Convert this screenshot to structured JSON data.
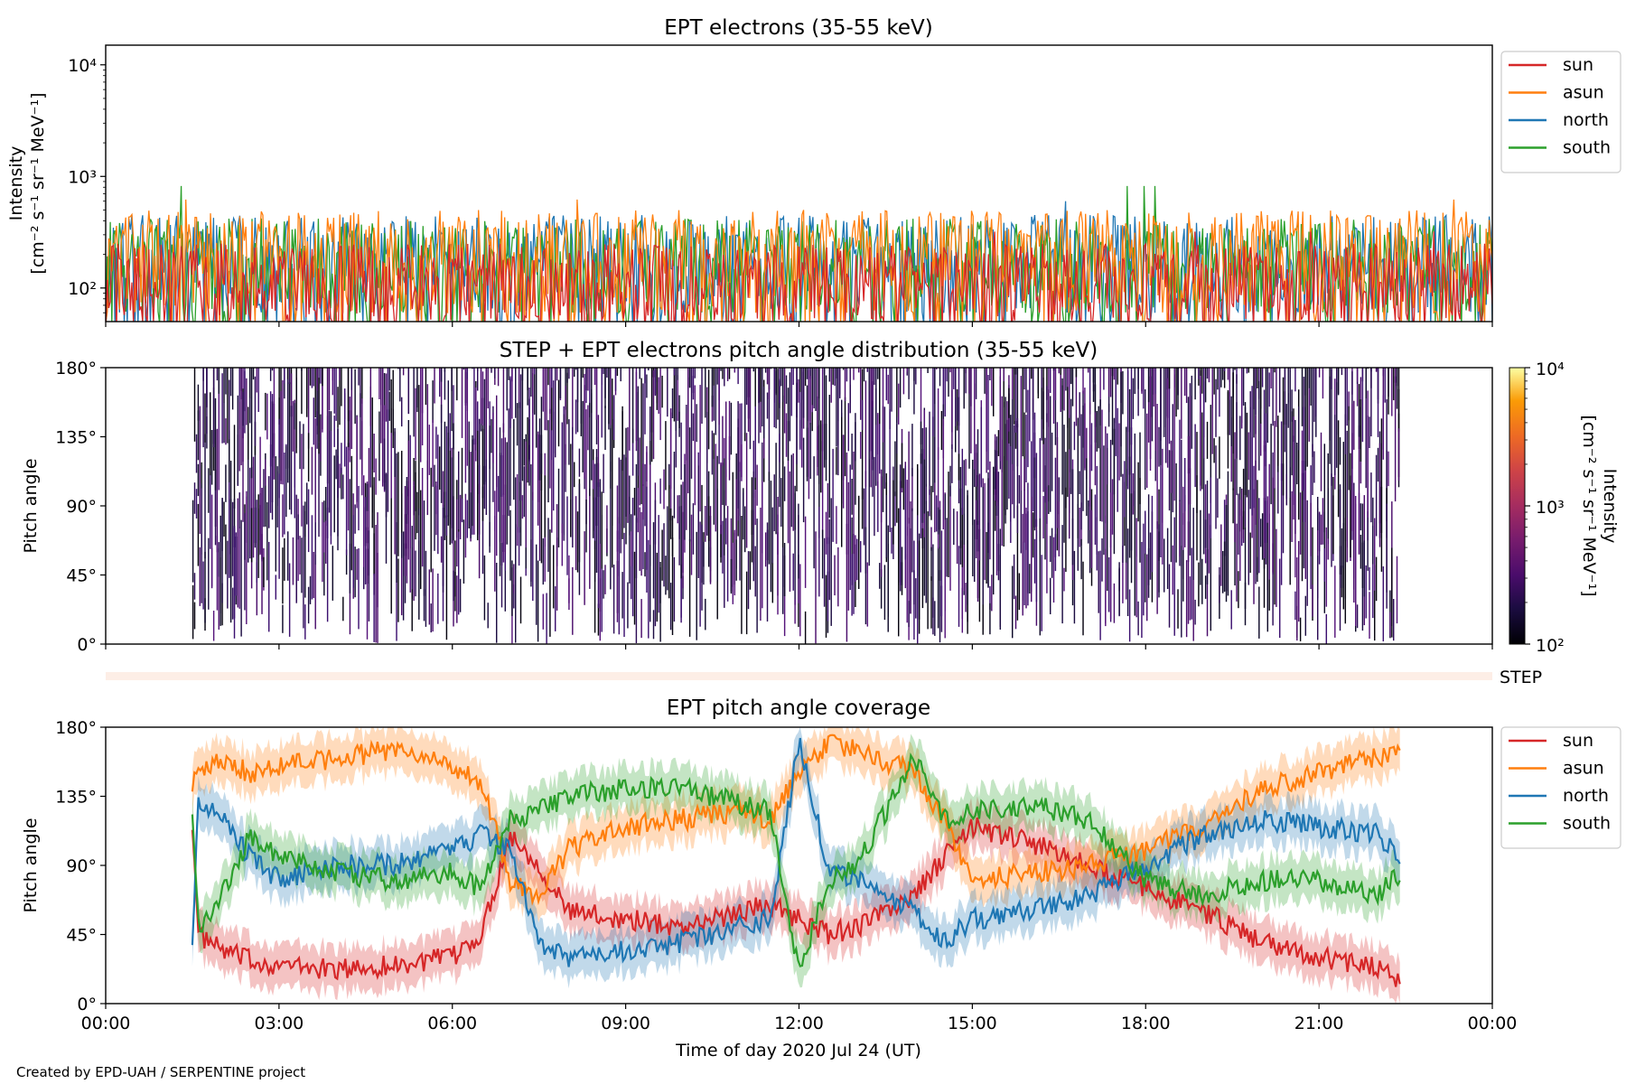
{
  "footer": "Created by EPD-UAH / SERPENTINE project",
  "xaxis": {
    "label": "Time of day 2020 Jul 24 (UT)",
    "ticks": [
      "00:00",
      "03:00",
      "06:00",
      "09:00",
      "12:00",
      "15:00",
      "18:00",
      "21:00",
      "00:00"
    ]
  },
  "colors": {
    "sun": "#d62728",
    "asun": "#ff7f0e",
    "north": "#1f77b4",
    "south": "#2ca02c"
  },
  "chart_data": [
    {
      "type": "line",
      "title": "EPT electrons (35-55 keV)",
      "ylabel_line1": "Intensity",
      "ylabel_line2": "[cm⁻² s⁻¹ sr⁻¹ MeV⁻¹]",
      "yscale": "log",
      "ylim": [
        50,
        15000
      ],
      "yticks": [
        100,
        1000,
        10000
      ],
      "ytick_labels": [
        "10²",
        "10³",
        "10⁴"
      ],
      "x_unit": "hours UT",
      "xlim": [
        0,
        24
      ],
      "legend_position": "outside-right-top",
      "series": [
        {
          "name": "north",
          "color": "#1f77b4",
          "typical_range": [
            60,
            450
          ],
          "peak": 600
        },
        {
          "name": "south",
          "color": "#2ca02c",
          "typical_range": [
            60,
            420
          ],
          "peak": 820
        },
        {
          "name": "asun",
          "color": "#ff7f0e",
          "typical_range": [
            60,
            500
          ],
          "peak": 620
        },
        {
          "name": "sun",
          "color": "#d62728",
          "typical_range": [
            50,
            250
          ],
          "peak": 320
        }
      ]
    },
    {
      "type": "heatmap",
      "title": "STEP + EPT electrons pitch angle distribution (35-55 keV)",
      "ylabel": "Pitch angle",
      "ylim": [
        0,
        180
      ],
      "yticks": [
        0,
        45,
        90,
        135,
        180
      ],
      "ytick_labels": [
        "0°",
        "45°",
        "90°",
        "135°",
        "180°"
      ],
      "xlim": [
        0,
        24
      ],
      "data_range_hours": [
        1.5,
        22.4
      ],
      "colorbar": {
        "label": "Intensity",
        "unit": "[cm⁻² s⁻¹ sr⁻¹ MeV⁻¹]",
        "scale": "log",
        "range": [
          100,
          10000
        ],
        "tick_labels": [
          "10²",
          "10³",
          "10⁴"
        ],
        "colormap": "inferno"
      },
      "typical_intensity": [
        100,
        300
      ],
      "step_strip_label": "STEP"
    },
    {
      "type": "line",
      "title": "EPT pitch angle coverage",
      "ylabel": "Pitch angle",
      "ylim": [
        0,
        180
      ],
      "yticks": [
        0,
        45,
        90,
        135,
        180
      ],
      "ytick_labels": [
        "0°",
        "45°",
        "90°",
        "135°",
        "180°"
      ],
      "xlim": [
        0,
        24
      ],
      "legend_position": "outside-right-top",
      "series": [
        {
          "name": "sun",
          "color": "#d62728",
          "x": [
            1.5,
            1.6,
            2.0,
            2.5,
            3.0,
            4.0,
            5.0,
            6.0,
            6.5,
            7.0,
            7.5,
            8.0,
            9.0,
            10.0,
            11.0,
            11.5,
            12.0,
            12.5,
            13.0,
            14.0,
            14.5,
            15.0,
            16.0,
            17.0,
            18.0,
            19.0,
            20.0,
            21.0,
            22.0,
            22.4
          ],
          "y": [
            120,
            45,
            35,
            28,
            25,
            22,
            25,
            30,
            45,
            110,
            90,
            60,
            55,
            50,
            60,
            65,
            55,
            45,
            50,
            70,
            95,
            115,
            105,
            90,
            75,
            60,
            40,
            30,
            25,
            15
          ]
        },
        {
          "name": "asun",
          "color": "#ff7f0e",
          "x": [
            1.5,
            1.6,
            2.0,
            2.5,
            3.0,
            4.0,
            5.0,
            6.0,
            6.5,
            7.0,
            7.5,
            8.0,
            9.0,
            10.0,
            11.0,
            11.5,
            12.0,
            12.5,
            13.0,
            14.0,
            14.5,
            15.0,
            16.0,
            17.0,
            18.0,
            19.0,
            20.0,
            21.0,
            22.0,
            22.4
          ],
          "y": [
            145,
            150,
            160,
            150,
            155,
            160,
            165,
            155,
            145,
            80,
            70,
            100,
            115,
            120,
            125,
            120,
            150,
            170,
            165,
            150,
            120,
            80,
            85,
            90,
            100,
            115,
            140,
            150,
            160,
            168
          ]
        },
        {
          "name": "north",
          "color": "#1f77b4",
          "x": [
            1.5,
            1.6,
            2.0,
            2.5,
            3.0,
            4.0,
            5.0,
            6.0,
            6.5,
            7.0,
            7.5,
            8.0,
            9.0,
            10.0,
            11.0,
            11.5,
            12.0,
            12.5,
            13.0,
            14.0,
            14.5,
            15.0,
            16.0,
            17.0,
            18.0,
            19.0,
            20.0,
            21.0,
            22.0,
            22.4
          ],
          "y": [
            45,
            130,
            120,
            95,
            80,
            90,
            90,
            100,
            110,
            100,
            40,
            30,
            35,
            40,
            50,
            55,
            170,
            90,
            80,
            60,
            40,
            55,
            60,
            70,
            90,
            110,
            120,
            115,
            110,
            95
          ]
        },
        {
          "name": "south",
          "color": "#2ca02c",
          "x": [
            1.5,
            1.6,
            2.0,
            2.5,
            3.0,
            4.0,
            5.0,
            6.0,
            6.5,
            7.0,
            7.5,
            8.0,
            9.0,
            10.0,
            11.0,
            11.5,
            12.0,
            12.5,
            13.0,
            14.0,
            14.5,
            15.0,
            16.0,
            17.0,
            18.0,
            19.0,
            20.0,
            21.0,
            22.0,
            22.4
          ],
          "y": [
            130,
            50,
            70,
            110,
            95,
            85,
            80,
            85,
            75,
            120,
            125,
            135,
            140,
            140,
            130,
            125,
            20,
            80,
            90,
            160,
            120,
            125,
            130,
            120,
            80,
            70,
            80,
            80,
            70,
            85
          ]
        }
      ]
    }
  ]
}
